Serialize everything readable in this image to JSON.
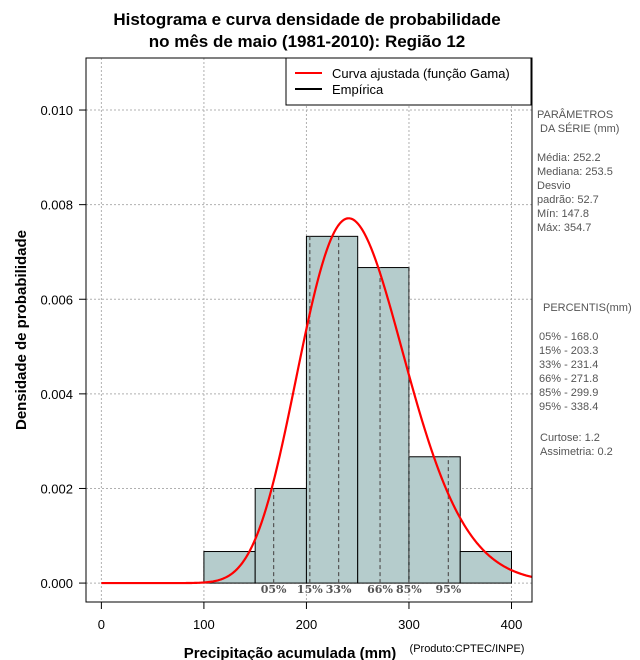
{
  "chart_data": {
    "type": "bar",
    "title": [
      "Histograma e curva densidade de probabilidade",
      "no mês de maio (1981-2010): Região 12"
    ],
    "xlabel": "Precipitação acumulada (mm)",
    "ylabel": "Densidade de probabilidade",
    "credit": "(Produto:CPTEC/INPE)",
    "xlim": [
      -15,
      420
    ],
    "ylim": [
      -0.0004,
      0.0111
    ],
    "xticks": [
      0,
      100,
      200,
      300,
      400
    ],
    "xtick_labels": [
      "0",
      "100",
      "200",
      "300",
      "400"
    ],
    "yticks": [
      0.0,
      0.002,
      0.004,
      0.006,
      0.008,
      0.01
    ],
    "ytick_labels": [
      "0.000",
      "0.002",
      "0.004",
      "0.006",
      "0.008",
      "0.010"
    ],
    "grid": true,
    "bins": [
      {
        "from": 100,
        "to": 150,
        "density": 0.000667
      },
      {
        "from": 150,
        "to": 200,
        "density": 0.002
      },
      {
        "from": 200,
        "to": 250,
        "density": 0.00733
      },
      {
        "from": 250,
        "to": 300,
        "density": 0.00667
      },
      {
        "from": 300,
        "to": 350,
        "density": 0.00267
      },
      {
        "from": 350,
        "to": 400,
        "density": 0.000667
      }
    ],
    "curve": {
      "name": "Curva ajustada (função Gama)",
      "distribution": "gamma",
      "mean": 252.2,
      "sd": 52.7,
      "color": "#ff0000"
    },
    "empirical_name": "Empírica",
    "percentile_lines": [
      {
        "label": "05%",
        "value": 168.0
      },
      {
        "label": "15%",
        "value": 203.3
      },
      {
        "label": "33%",
        "value": 231.4
      },
      {
        "label": "66%",
        "value": 271.8
      },
      {
        "label": "85%",
        "value": 299.9
      },
      {
        "label": "95%",
        "value": 338.4
      }
    ],
    "legend_position": "top-right",
    "bar_color": "#b5cccc",
    "curve_color": "#ff0000",
    "empirical_color": "#000000"
  },
  "sidebar": {
    "params_title": [
      "PARÂMETROS",
      "DA SÉRIE (mm)"
    ],
    "params": [
      "Média:  252.2",
      "Mediana:  253.5",
      "Desvio",
      "padrão:  52.7",
      "Mín:  147.8",
      "Máx:  354.7"
    ],
    "percentis_title": "PERCENTIS(mm)",
    "percentis": [
      "05% -  168.0",
      "15% -  203.3",
      "33% -  231.4",
      "66% -  271.8",
      "85% -  299.9",
      "95% -  338.4"
    ],
    "stats": [
      "Curtose:  1.2",
      "Assimetria:  0.2"
    ]
  }
}
